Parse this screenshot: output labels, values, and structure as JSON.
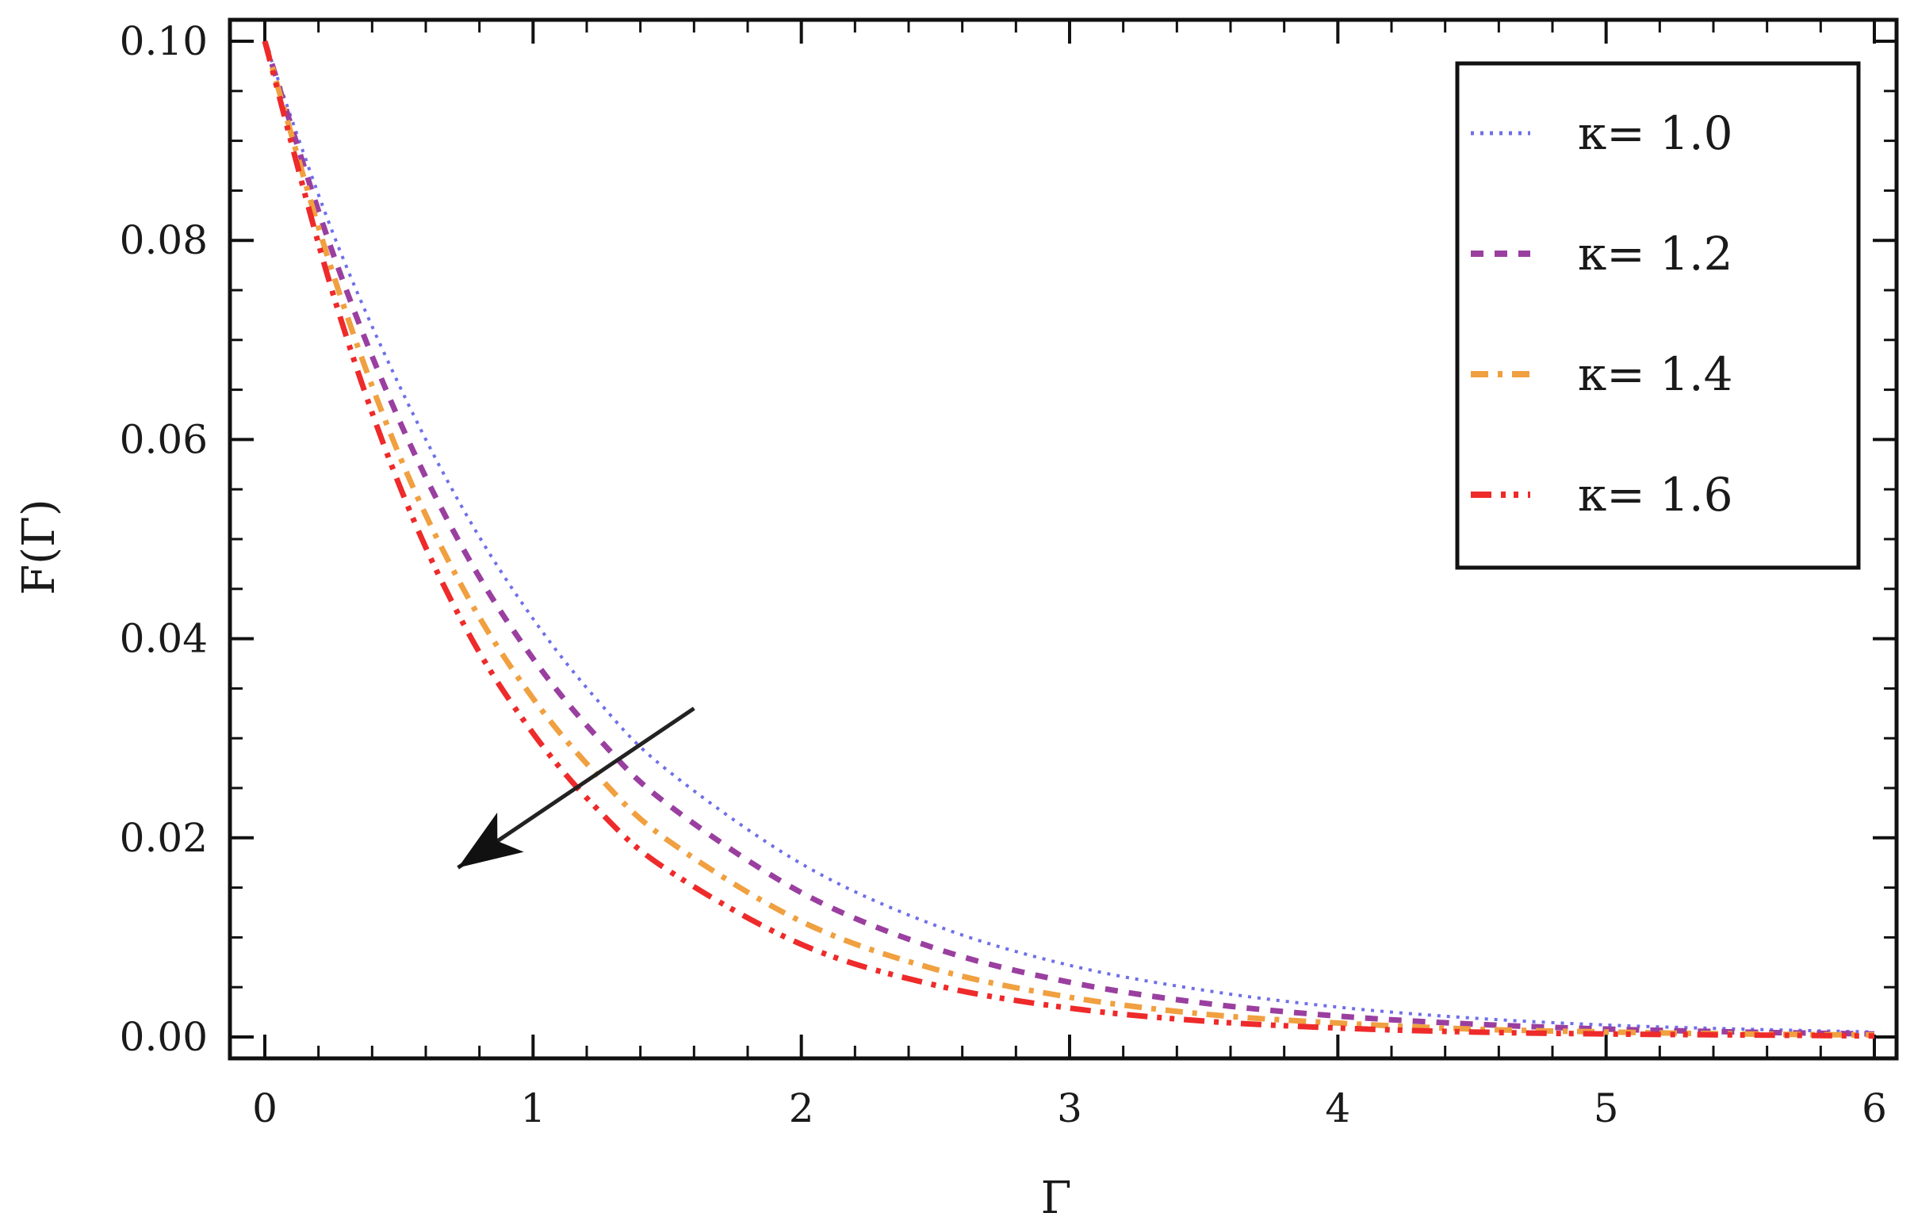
{
  "chart_data": {
    "type": "line",
    "title": "",
    "xlabel": "Γ",
    "ylabel": "F(Γ)",
    "xlim": [
      0,
      6
    ],
    "ylim": [
      0,
      0.1
    ],
    "xticks": [
      "0",
      "1",
      "2",
      "3",
      "4",
      "5",
      "6"
    ],
    "yticks": [
      "0.00",
      "0.02",
      "0.04",
      "0.06",
      "0.08",
      "0.10"
    ],
    "legend": {
      "placement": "top-right"
    },
    "arrow": {
      "from": [
        1.6,
        0.033
      ],
      "to": [
        0.72,
        0.017
      ]
    },
    "series": [
      {
        "name": "κ= 1.0",
        "color": "#6f6fe8",
        "dash": "dotted",
        "x": [
          0,
          0.25,
          0.5,
          0.75,
          1.0,
          1.25,
          1.5,
          2.0,
          2.5,
          3.0,
          3.5,
          4.0,
          4.5,
          5.0,
          5.5,
          6.0
        ],
        "y": [
          0.1,
          0.081,
          0.0655,
          0.0525,
          0.042,
          0.0335,
          0.0268,
          0.0174,
          0.0112,
          0.0072,
          0.0047,
          0.003,
          0.0019,
          0.0012,
          0.0008,
          0.0005
        ]
      },
      {
        "name": "κ= 1.2",
        "color": "#9a3fa0",
        "dash": "dashed",
        "x": [
          0,
          0.25,
          0.5,
          0.75,
          1.0,
          1.25,
          1.5,
          2.0,
          2.5,
          3.0,
          3.5,
          4.0,
          4.5,
          5.0,
          5.5,
          6.0
        ],
        "y": [
          0.1,
          0.079,
          0.062,
          0.0485,
          0.038,
          0.0298,
          0.0234,
          0.0145,
          0.0089,
          0.0055,
          0.0034,
          0.0021,
          0.0013,
          0.0008,
          0.0005,
          0.0003
        ]
      },
      {
        "name": "κ= 1.4",
        "color": "#f0a040",
        "dash": "dashdot",
        "x": [
          0,
          0.25,
          0.5,
          0.75,
          1.0,
          1.25,
          1.5,
          2.0,
          2.5,
          3.0,
          3.5,
          4.0,
          4.5,
          5.0,
          5.5,
          6.0
        ],
        "y": [
          0.1,
          0.077,
          0.0585,
          0.0445,
          0.034,
          0.026,
          0.0198,
          0.0116,
          0.0068,
          0.004,
          0.0023,
          0.0014,
          0.0008,
          0.0005,
          0.0003,
          0.0002
        ]
      },
      {
        "name": "κ= 1.6",
        "color": "#ee2a2a",
        "dash": "dashdotdot",
        "x": [
          0,
          0.25,
          0.5,
          0.75,
          1.0,
          1.25,
          1.5,
          2.0,
          2.5,
          3.0,
          3.5,
          4.0,
          4.5,
          5.0,
          5.5,
          6.0
        ],
        "y": [
          0.1,
          0.075,
          0.0555,
          0.041,
          0.0305,
          0.0226,
          0.0168,
          0.0093,
          0.0052,
          0.0029,
          0.0016,
          0.0009,
          0.0005,
          0.0003,
          0.0002,
          0.0001
        ]
      }
    ]
  }
}
